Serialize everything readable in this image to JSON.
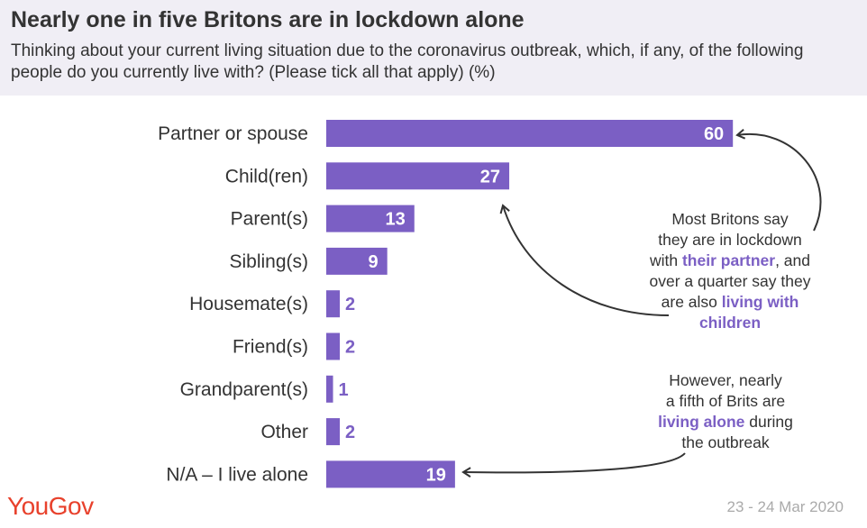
{
  "title": "Nearly one in five Britons are in lockdown alone",
  "subtitle": "Thinking about your current living situation due to the coronavirus outbreak, which, if any, of the following people do you currently live with? (Please tick all that apply) (%)",
  "chart_data": {
    "type": "bar",
    "orientation": "horizontal",
    "categories": [
      "Partner or spouse",
      "Child(ren)",
      "Parent(s)",
      "Sibling(s)",
      "Housemate(s)",
      "Friend(s)",
      "Grandparent(s)",
      "Other",
      "N/A – I live alone"
    ],
    "values": [
      60,
      27,
      13,
      9,
      2,
      2,
      1,
      2,
      19
    ],
    "unit": "%",
    "xlim": [
      0,
      100
    ],
    "grid": false,
    "legend": "none",
    "bar_color": "#7b5fc4"
  },
  "annotations": {
    "top": {
      "line1": "Most Britons say",
      "line2": "they are in lockdown",
      "line3a": "with ",
      "line3b": "their partner",
      "line3c": ", and",
      "line4": "over a quarter say they",
      "line5a": "are also ",
      "line5b": "living with",
      "line6": "children"
    },
    "bottom": {
      "line1": "However, nearly",
      "line2": "a fifth of Brits are",
      "line3a": "living alone",
      "line3b": " during",
      "line4": "the outbreak"
    }
  },
  "footer": {
    "logo": "YouGov",
    "date": "23 - 24 Mar 2020"
  }
}
